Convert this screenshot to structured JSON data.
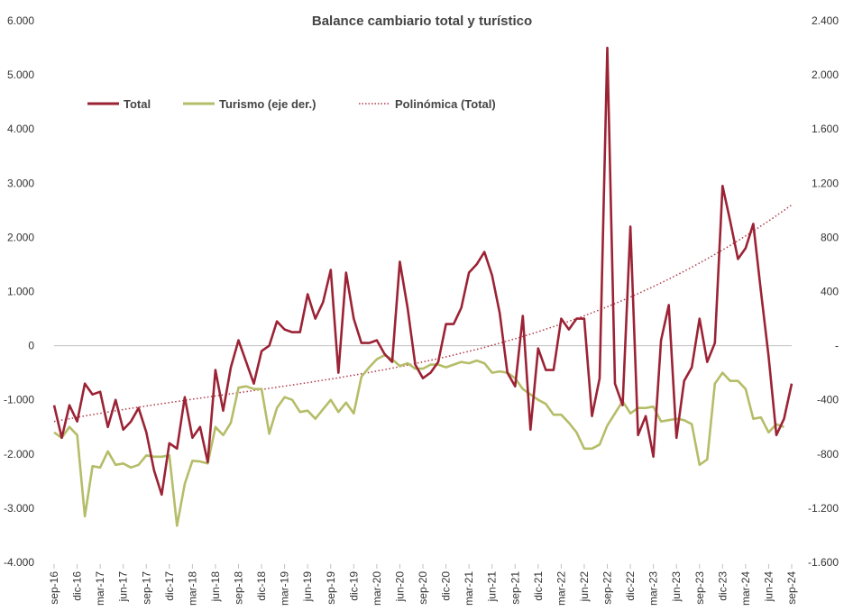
{
  "chart_data": {
    "type": "line",
    "title": "Balance cambiario total y turístico",
    "legend": {
      "placement": "top-left",
      "entries": [
        "Total",
        "Turismo (eje der.)",
        "Polinómica (Total)"
      ]
    },
    "grid": false,
    "colors": {
      "total": "#9b2335",
      "turismo": "#b5bd68",
      "trend": "#b03a48"
    },
    "y_left": {
      "ylim": [
        -4000,
        6000
      ],
      "ticks": [
        6000,
        5000,
        4000,
        3000,
        2000,
        1000,
        0,
        -1000,
        -2000,
        -3000,
        -4000
      ],
      "tick_labels": [
        "6.000",
        "5.000",
        "4.000",
        "3.000",
        "2.000",
        "1.000",
        "0",
        "-1.000",
        "-2.000",
        "-3.000",
        "-4.000"
      ]
    },
    "y_right": {
      "ylim": [
        -1600,
        2400
      ],
      "ticks": [
        2400,
        2000,
        1600,
        1200,
        800,
        400,
        0,
        -400,
        -800,
        -1200,
        -1600
      ],
      "tick_labels": [
        "2.400",
        "2.000",
        "1.600",
        "1.200",
        "800",
        "400",
        "-",
        "-400",
        "-800",
        "-1.200",
        "-1.600"
      ]
    },
    "x_tick_labels": [
      "sep-16",
      "dic-16",
      "mar-17",
      "jun-17",
      "sep-17",
      "dic-17",
      "mar-18",
      "jun-18",
      "sep-18",
      "dic-18",
      "mar-19",
      "jun-19",
      "sep-19",
      "dic-19",
      "mar-20",
      "jun-20",
      "sep-20",
      "dic-20",
      "mar-21",
      "jun-21",
      "sep-21",
      "dic-21",
      "mar-22",
      "jun-22",
      "sep-22",
      "dic-22",
      "mar-23",
      "jun-23",
      "sep-23",
      "dic-23",
      "mar-24",
      "jun-24",
      "sep-24"
    ],
    "series": [
      {
        "name": "Total",
        "axis": "left",
        "values": [
          -1100,
          -1700,
          -1100,
          -1400,
          -700,
          -900,
          -850,
          -1500,
          -1000,
          -1550,
          -1400,
          -1150,
          -1600,
          -2300,
          -2750,
          -1800,
          -1900,
          -950,
          -1700,
          -1500,
          -2150,
          -450,
          -1200,
          -400,
          100,
          -300,
          -700,
          -100,
          0,
          450,
          300,
          250,
          250,
          950,
          500,
          800,
          1400,
          -500,
          1350,
          500,
          50,
          50,
          100,
          -150,
          -300,
          1550,
          700,
          -350,
          -600,
          -500,
          -300,
          400,
          400,
          700,
          1350,
          1500,
          1730,
          1300,
          600,
          -500,
          -750,
          550,
          -1550,
          -50,
          -450,
          -450,
          500,
          300,
          500,
          500,
          -1300,
          -600,
          5500,
          -700,
          -1100,
          2200,
          -1650,
          -1300,
          -2050,
          100,
          750,
          -1700,
          -650,
          -400,
          500,
          -300,
          50,
          2950,
          2300,
          1600,
          1800,
          2250,
          1000,
          -200,
          -1650,
          -1350,
          -700
        ]
      },
      {
        "name": "Turismo (eje der.)",
        "axis": "right",
        "values": [
          -640,
          -680,
          -600,
          -660,
          -1260,
          -890,
          -900,
          -780,
          -880,
          -870,
          -900,
          -880,
          -810,
          -820,
          -820,
          -810,
          -1330,
          -1020,
          -850,
          -855,
          -870,
          -600,
          -660,
          -570,
          -310,
          -300,
          -320,
          -320,
          -650,
          -460,
          -380,
          -400,
          -490,
          -480,
          -540,
          -470,
          -400,
          -490,
          -420,
          -500,
          -230,
          -160,
          -100,
          -70,
          -100,
          -150,
          -130,
          -170,
          -170,
          -140,
          -140,
          -160,
          -140,
          -120,
          -130,
          -110,
          -130,
          -200,
          -190,
          -200,
          -240,
          -320,
          -360,
          -400,
          -430,
          -510,
          -510,
          -570,
          -640,
          -760,
          -760,
          -730,
          -590,
          -500,
          -410,
          -500,
          -460,
          -460,
          -450,
          -560,
          -550,
          -540,
          -550,
          -580,
          -880,
          -840,
          -280,
          -200,
          -260,
          -260,
          -320,
          -540,
          -530,
          -640,
          -580,
          -600
        ]
      },
      {
        "name": "Polinómica (Total)",
        "axis": "left",
        "style": "dotted",
        "coeffs": [
          -1400,
          2600,
          -3000,
          4400
        ]
      }
    ]
  }
}
